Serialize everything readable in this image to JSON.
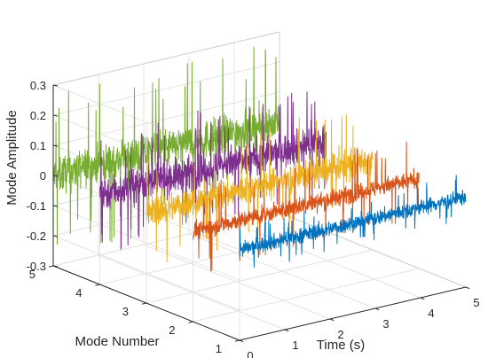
{
  "chart_data": {
    "type": "line",
    "plot_kind": "3d-waterfall",
    "title": "",
    "xlabel": "Time (s)",
    "ylabel": "Mode Number",
    "zlabel": "Mode Amplitude",
    "xlim": [
      0,
      5
    ],
    "ylim": [
      1,
      5
    ],
    "zlim": [
      -0.3,
      0.3
    ],
    "x_ticks": [
      "0",
      "1",
      "2",
      "3",
      "4",
      "5"
    ],
    "y_ticks": [
      "1",
      "2",
      "3",
      "4",
      "5"
    ],
    "z_ticks": [
      "-0.3",
      "-0.2",
      "-0.1",
      "0",
      "0.1",
      "0.2",
      "0.3"
    ],
    "grid": true,
    "series": [
      {
        "mode": 5,
        "color": "#77AC30",
        "center": 0.0,
        "noise_std": 0.045,
        "spike_max": 0.27
      },
      {
        "mode": 4,
        "color": "#7E2F8E",
        "center": 0.0,
        "noise_std": 0.04,
        "spike_max": 0.2
      },
      {
        "mode": 3,
        "color": "#EDB120",
        "center": 0.0,
        "noise_std": 0.035,
        "spike_max": 0.2
      },
      {
        "mode": 2,
        "color": "#D95319",
        "center": 0.0,
        "noise_std": 0.02,
        "spike_max": 0.15
      },
      {
        "mode": 1,
        "color": "#0072BD",
        "center": 0.0,
        "noise_std": 0.018,
        "spike_max": 0.08
      }
    ]
  }
}
